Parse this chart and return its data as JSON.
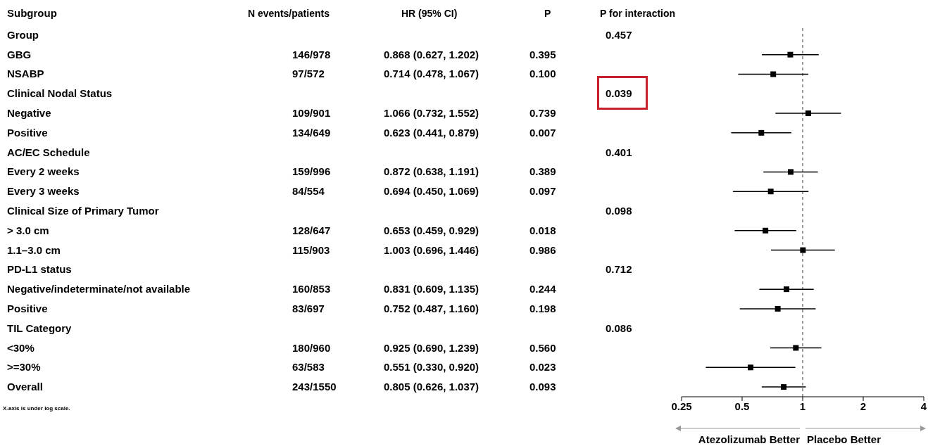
{
  "chart_data": [
    {
      "type": "other",
      "ylabel": "Subgroup",
      "categories": [
        "Group",
        "GBG",
        "NSABP",
        "Clinical Nodal Status",
        "Negative",
        "Positive",
        "AC/EC Schedule",
        "Every 2 weeks",
        "Every 3 weeks",
        "Clinical Size of Primary Tumor",
        "> 3.0 cm",
        "1.1–3.0 cm",
        "PD-L1 status",
        "Negative/indeterminate/not available",
        "Positive",
        "TIL Category",
        "<30%",
        ">=30%",
        "Overall"
      ],
      "series": [
        {
          "name": "N events/patients",
          "values": [
            null,
            146,
            97,
            null,
            109,
            134,
            null,
            159,
            84,
            null,
            128,
            115,
            null,
            160,
            83,
            null,
            180,
            63,
            243
          ],
          "value_labels": [
            null,
            "146/978",
            "97/572",
            null,
            "109/901",
            "134/649",
            null,
            "159/996",
            "84/554",
            null,
            "128/647",
            "115/903",
            null,
            "160/853",
            "83/697",
            null,
            "180/960",
            "63/583",
            "243/1550"
          ]
        },
        {
          "name": "HR (95% CI)",
          "values": [
            null,
            0.868,
            0.714,
            null,
            1.066,
            0.623,
            null,
            0.872,
            0.694,
            null,
            0.653,
            1.003,
            null,
            0.831,
            0.752,
            null,
            0.925,
            0.551,
            0.805
          ],
          "value_labels": [
            null,
            "0.868 (0.627, 1.202)",
            "0.714 (0.478, 1.067)",
            null,
            "1.066 (0.732, 1.552)",
            "0.623 (0.441, 0.879)",
            null,
            "0.872 (0.638, 1.191)",
            "0.694 (0.450, 1.069)",
            null,
            "0.653 (0.459, 0.929)",
            "1.003 (0.696, 1.446)",
            null,
            "0.831 (0.609, 1.135)",
            "0.752 (0.487, 1.160)",
            null,
            "0.925 (0.690, 1.239)",
            "0.551 (0.330, 0.920)",
            "0.805 (0.626, 1.037)"
          ]
        },
        {
          "name": "P",
          "values": [
            null,
            0.395,
            0.1,
            null,
            0.739,
            0.007,
            null,
            0.389,
            0.097,
            null,
            0.018,
            0.986,
            null,
            0.244,
            0.198,
            null,
            0.56,
            0.023,
            0.093
          ],
          "value_labels": [
            null,
            "0.395",
            "0.100",
            null,
            "0.739",
            "0.007",
            null,
            "0.389",
            "0.097",
            null,
            "0.018",
            "0.986",
            null,
            "0.244",
            "0.198",
            null,
            "0.560",
            "0.023",
            "0.093"
          ]
        },
        {
          "name": "P for interaction",
          "values": [
            0.457,
            null,
            null,
            0.039,
            null,
            null,
            0.401,
            null,
            null,
            0.098,
            null,
            null,
            0.712,
            null,
            null,
            0.086,
            null,
            null,
            null
          ],
          "value_labels": [
            "0.457",
            null,
            null,
            "0.039",
            null,
            null,
            "0.401",
            null,
            null,
            "0.098",
            null,
            null,
            "0.712",
            null,
            null,
            "0.086",
            null,
            null,
            null
          ]
        }
      ]
    },
    {
      "type": "scatter",
      "orientation": "horizontal",
      "tick_labels": "x",
      "series": [
        {
          "color": "#000000",
          "values": [
            null,
            0.868,
            0.714,
            null,
            1.066,
            0.623,
            null,
            0.872,
            0.694,
            null,
            0.653,
            1.003,
            null,
            0.831,
            0.752,
            null,
            0.925,
            0.551,
            0.805
          ],
          "errors": [
            null,
            [
              0.627,
              1.202
            ],
            [
              0.478,
              1.067
            ],
            null,
            [
              0.732,
              1.552
            ],
            [
              0.441,
              0.879
            ],
            null,
            [
              0.638,
              1.191
            ],
            [
              0.45,
              1.069
            ],
            null,
            [
              0.459,
              0.929
            ],
            [
              0.696,
              1.446
            ],
            null,
            [
              0.609,
              1.135
            ],
            [
              0.487,
              1.16
            ],
            null,
            [
              0.69,
              1.239
            ],
            [
              0.33,
              0.92
            ],
            [
              0.626,
              1.037
            ]
          ]
        }
      ],
      "log": "x",
      "xlim": [
        0.25,
        4
      ],
      "xticks": [
        0.25,
        0.5,
        1,
        2,
        4
      ],
      "ref_lines": [
        {
          "axis": "x",
          "value": 1,
          "color": "#999999",
          "line_style": "dashed"
        }
      ],
      "marker": "square",
      "grid": false,
      "legend": false,
      "annotations": [
        "X-axis is under log scale.",
        "Atezolizumab Better",
        "Placebo Better"
      ]
    }
  ]
}
